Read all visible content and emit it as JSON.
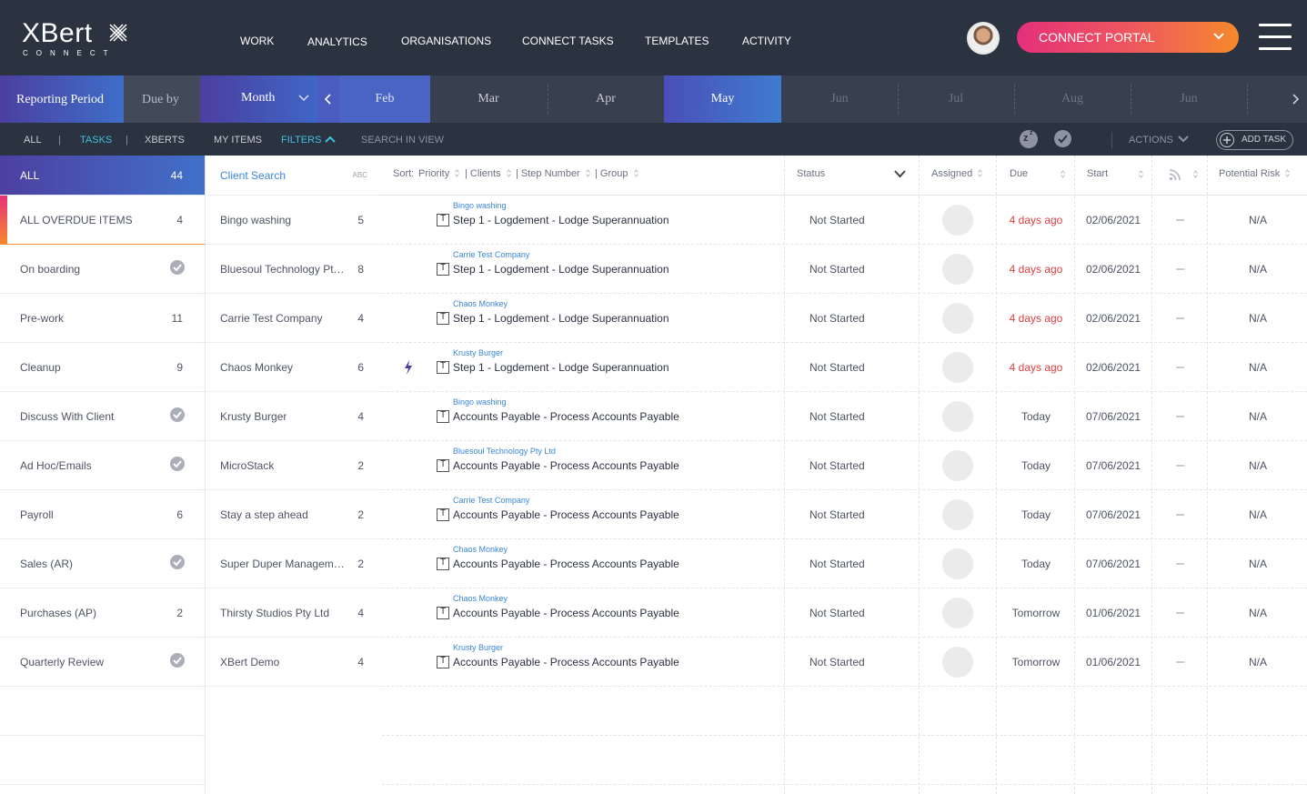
{
  "app": {
    "logo_word": "XBert",
    "logo_sub": "CONNECT"
  },
  "nav": [
    "WORK",
    "ANALYTICS",
    "ORGANISATIONS",
    "CONNECT TASKS",
    "TEMPLATES",
    "ACTIVITY"
  ],
  "portal_label": "CONNECT PORTAL",
  "period": {
    "reporting": "Reporting Period",
    "due_by": "Due by",
    "granularity": "Month",
    "months": [
      "Feb",
      "Mar",
      "Apr",
      "May",
      "Jun",
      "Jul",
      "Aug",
      "Jun"
    ],
    "selected": "May"
  },
  "filters": {
    "all": "ALL",
    "tasks": "TASKS",
    "xberts": "XBERTS",
    "my_items": "MY ITEMS",
    "filters": "FILTERS",
    "search": "SEARCH IN VIEW",
    "actions": "ACTIONS",
    "add_task": "ADD TASK",
    "separator": "|"
  },
  "categories": [
    {
      "label": "ALL",
      "count": "44"
    },
    {
      "label": "ALL OVERDUE ITEMS",
      "count": "4"
    },
    {
      "label": "On boarding",
      "count": ""
    },
    {
      "label": "Pre-work",
      "count": "11"
    },
    {
      "label": "Cleanup",
      "count": "9"
    },
    {
      "label": "Discuss With Client",
      "count": ""
    },
    {
      "label": "Ad Hoc/Emails",
      "count": ""
    },
    {
      "label": "Payroll",
      "count": "6"
    },
    {
      "label": "Sales (AR)",
      "count": ""
    },
    {
      "label": "Purchases (AP)",
      "count": "2"
    },
    {
      "label": "Quarterly Review",
      "count": ""
    }
  ],
  "client_panel": {
    "header": "Client Search",
    "sort_hint": "ABC",
    "clients": [
      {
        "name": "Bingo washing",
        "count": "5"
      },
      {
        "name": "Bluesoul Technology Pty Ltd",
        "count": "8"
      },
      {
        "name": "Carrie Test Company",
        "count": "4"
      },
      {
        "name": "Chaos Monkey",
        "count": "6"
      },
      {
        "name": "Krusty Burger",
        "count": "4"
      },
      {
        "name": "MicroStack",
        "count": "2"
      },
      {
        "name": "Stay a step ahead",
        "count": "2"
      },
      {
        "name": "Super Duper Management",
        "count": "2"
      },
      {
        "name": "Thirsty Studios Pty Ltd",
        "count": "4"
      },
      {
        "name": "XBert Demo",
        "count": "4"
      }
    ]
  },
  "table": {
    "sort_label": "Sort:",
    "sort_priority": "Priority",
    "sort_clients": "| Clients",
    "sort_step": "| Step Number",
    "sort_group": "| Group",
    "col_status": "Status",
    "col_assigned": "Assigned",
    "col_due": "Due",
    "col_start": "Start",
    "col_risk": "Potential Risk",
    "rows": [
      {
        "client": "Bingo washing",
        "task": "Step 1 - Logdement - Lodge Superannuation",
        "status": "Not Started",
        "due": "4 days ago",
        "start": "02/06/2021",
        "risk": "N/A"
      },
      {
        "client": "Carrie Test Company",
        "task": "Step 1 - Logdement - Lodge Superannuation",
        "status": "Not Started",
        "due": "4 days ago",
        "start": "02/06/2021",
        "risk": "N/A"
      },
      {
        "client": "Chaos Monkey",
        "task": "Step 1 - Logdement - Lodge Superannuation",
        "status": "Not Started",
        "due": "4 days ago",
        "start": "02/06/2021",
        "risk": "N/A"
      },
      {
        "client": "Krusty Burger",
        "task": "Step 1 - Logdement - Lodge Superannuation",
        "status": "Not Started",
        "due": "4 days ago",
        "start": "02/06/2021",
        "risk": "N/A"
      },
      {
        "client": "Bingo washing",
        "task": "Accounts Payable - Process Accounts Payable",
        "status": "Not Started",
        "due": "Today",
        "start": "07/06/2021",
        "risk": "N/A"
      },
      {
        "client": "Bluesoul Technology Pty Ltd",
        "task": "Accounts Payable - Process Accounts Payable",
        "status": "Not Started",
        "due": "Today",
        "start": "07/06/2021",
        "risk": "N/A"
      },
      {
        "client": "Carrie Test Company",
        "task": "Accounts Payable - Process Accounts Payable",
        "status": "Not Started",
        "due": "Today",
        "start": "07/06/2021",
        "risk": "N/A"
      },
      {
        "client": "Chaos Monkey",
        "task": "Accounts Payable - Process Accounts Payable",
        "status": "Not Started",
        "due": "Today",
        "start": "07/06/2021",
        "risk": "N/A"
      },
      {
        "client": "Chaos Monkey",
        "task": "Accounts Payable - Process Accounts Payable",
        "status": "Not Started",
        "due": "Tomorrow",
        "start": "01/06/2021",
        "risk": "N/A"
      },
      {
        "client": "Krusty Burger",
        "task": "Accounts Payable - Process Accounts Payable",
        "status": "Not Started",
        "due": "Tomorrow",
        "start": "01/06/2021",
        "risk": "N/A"
      }
    ]
  }
}
